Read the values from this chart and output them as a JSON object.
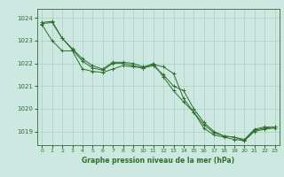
{
  "title": "Graphe pression niveau de la mer (hPa)",
  "bg_color": "#cce8e0",
  "grid_color": "#aacfc8",
  "line_color": "#2d6e2d",
  "text_color": "#2d6e2d",
  "xlim": [
    -0.5,
    23.5
  ],
  "ylim": [
    1018.4,
    1024.4
  ],
  "xticks": [
    0,
    1,
    2,
    3,
    4,
    5,
    6,
    7,
    8,
    9,
    10,
    11,
    12,
    13,
    14,
    15,
    16,
    17,
    18,
    19,
    20,
    21,
    22,
    23
  ],
  "yticks": [
    1019,
    1020,
    1021,
    1022,
    1023,
    1024
  ],
  "series": [
    [
      1023.75,
      1023.8,
      1023.1,
      1022.6,
      1022.1,
      1021.8,
      1021.7,
      1022.0,
      1022.0,
      1021.9,
      1021.8,
      1021.9,
      1021.5,
      1021.0,
      1020.8,
      1020.0,
      1019.4,
      1019.0,
      1018.8,
      1018.75,
      1018.65,
      1019.1,
      1019.2,
      1019.2
    ],
    [
      1023.8,
      1023.85,
      1023.1,
      1022.65,
      1022.2,
      1021.9,
      1021.75,
      1022.05,
      1022.05,
      1022.0,
      1021.85,
      1021.95,
      1021.85,
      1021.55,
      1020.45,
      1019.85,
      1019.3,
      1018.95,
      1018.8,
      1018.75,
      1018.6,
      1019.05,
      1019.15,
      1019.2
    ],
    [
      1023.7,
      1023.0,
      1022.55,
      1022.55,
      1021.75,
      1021.65,
      1021.6,
      1021.75,
      1021.9,
      1021.85,
      1021.8,
      1022.0,
      1021.4,
      1020.8,
      1020.3,
      1019.85,
      1019.15,
      1018.85,
      1018.75,
      1018.65,
      1018.6,
      1019.0,
      1019.1,
      1019.15
    ]
  ]
}
